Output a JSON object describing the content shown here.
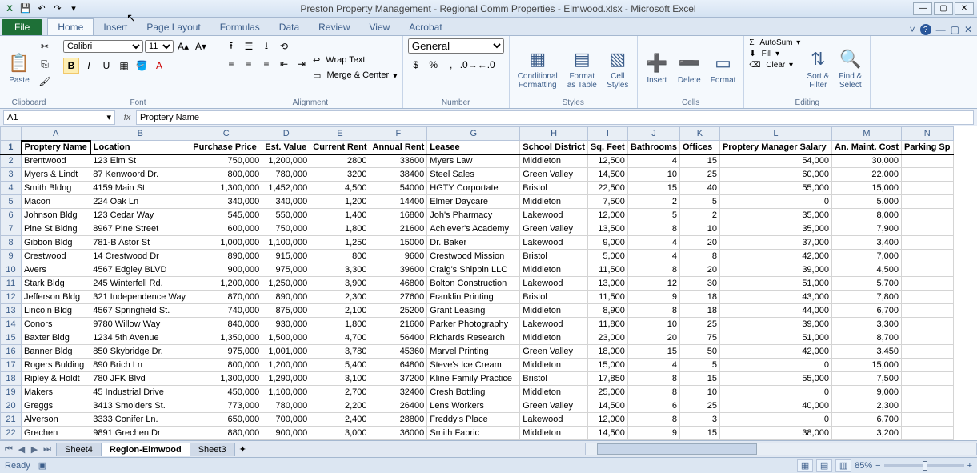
{
  "app_title": "Preston Property Management - Regional Comm Properties - Elmwood.xlsx  -  Microsoft Excel",
  "tabs": {
    "file": "File",
    "items": [
      "Home",
      "Insert",
      "Page Layout",
      "Formulas",
      "Data",
      "Review",
      "View",
      "Acrobat"
    ],
    "active": "Home"
  },
  "ribbon": {
    "clipboard": {
      "paste": "Paste",
      "label": "Clipboard"
    },
    "font": {
      "name": "Calibri",
      "size": "11",
      "label": "Font"
    },
    "alignment": {
      "wrap": "Wrap Text",
      "merge": "Merge & Center",
      "label": "Alignment"
    },
    "number": {
      "format": "General",
      "label": "Number"
    },
    "styles": {
      "cond": "Conditional\nFormatting",
      "fmt": "Format\nas Table",
      "cell": "Cell\nStyles",
      "label": "Styles"
    },
    "cells": {
      "insert": "Insert",
      "delete": "Delete",
      "format": "Format",
      "label": "Cells"
    },
    "editing": {
      "autosum": "AutoSum",
      "fill": "Fill",
      "clear": "Clear",
      "sort": "Sort &\nFilter",
      "find": "Find &\nSelect",
      "label": "Editing"
    }
  },
  "namebox": "A1",
  "formula": "Proptery Name",
  "columns": [
    {
      "letter": "A",
      "label": "Proptery Name",
      "w": 86,
      "align": "txt"
    },
    {
      "letter": "B",
      "label": "Location",
      "w": 125,
      "align": "txt"
    },
    {
      "letter": "C",
      "label": "Purchase Price",
      "w": 90,
      "align": "num"
    },
    {
      "letter": "D",
      "label": "Est. Value",
      "w": 60,
      "align": "num"
    },
    {
      "letter": "E",
      "label": "Current Rent",
      "w": 70,
      "align": "num"
    },
    {
      "letter": "F",
      "label": "Annual Rent",
      "w": 66,
      "align": "num"
    },
    {
      "letter": "G",
      "label": "Leasee",
      "w": 116,
      "align": "txt"
    },
    {
      "letter": "H",
      "label": "School District",
      "w": 80,
      "align": "txt"
    },
    {
      "letter": "I",
      "label": "Sq. Feet",
      "w": 50,
      "align": "num"
    },
    {
      "letter": "J",
      "label": "Bathrooms",
      "w": 60,
      "align": "num"
    },
    {
      "letter": "K",
      "label": "Offices",
      "w": 50,
      "align": "num"
    },
    {
      "letter": "L",
      "label": "Proptery Manager Salary",
      "w": 140,
      "align": "num"
    },
    {
      "letter": "M",
      "label": "An. Maint. Cost",
      "w": 82,
      "align": "num"
    },
    {
      "letter": "N",
      "label": "Parking Sp",
      "w": 55,
      "align": "num"
    }
  ],
  "rows": [
    [
      "Brentwood",
      "123 Elm St",
      "750,000",
      "1,200,000",
      "2800",
      "33600",
      "Myers Law",
      "Middleton",
      "12,500",
      "4",
      "15",
      "54,000",
      "30,000",
      ""
    ],
    [
      "Myers & Lindt",
      "87 Kenwoord Dr.",
      "800,000",
      "780,000",
      "3200",
      "38400",
      "Steel Sales",
      "Green Valley",
      "14,500",
      "10",
      "25",
      "60,000",
      "22,000",
      ""
    ],
    [
      "Smith Bldng",
      "4159 Main St",
      "1,300,000",
      "1,452,000",
      "4,500",
      "54000",
      "HGTY Corportate",
      "Bristol",
      "22,500",
      "15",
      "40",
      "55,000",
      "15,000",
      ""
    ],
    [
      "Macon",
      "224 Oak Ln",
      "340,000",
      "340,000",
      "1,200",
      "14400",
      "Elmer Daycare",
      "Middleton",
      "7,500",
      "2",
      "5",
      "0",
      "5,000",
      ""
    ],
    [
      "Johnson Bldg",
      "123 Cedar Way",
      "545,000",
      "550,000",
      "1,400",
      "16800",
      "Joh's Pharmacy",
      "Lakewood",
      "12,000",
      "5",
      "2",
      "35,000",
      "8,000",
      ""
    ],
    [
      "Pine St Bldng",
      "8967 Pine Street",
      "600,000",
      "750,000",
      "1,800",
      "21600",
      "Achiever's Academy",
      "Green Valley",
      "13,500",
      "8",
      "10",
      "35,000",
      "7,900",
      ""
    ],
    [
      "Gibbon Bldg",
      "781-B Astor St",
      "1,000,000",
      "1,100,000",
      "1,250",
      "15000",
      "Dr. Baker",
      "Lakewood",
      "9,000",
      "4",
      "20",
      "37,000",
      "3,400",
      ""
    ],
    [
      "Crestwood",
      "14 Crestwood Dr",
      "890,000",
      "915,000",
      "800",
      "9600",
      "Crestwood Mission",
      "Bristol",
      "5,000",
      "4",
      "8",
      "42,000",
      "7,000",
      ""
    ],
    [
      "Avers",
      "4567 Edgley BLVD",
      "900,000",
      "975,000",
      "3,300",
      "39600",
      "Craig's Shippin LLC",
      "Middleton",
      "11,500",
      "8",
      "20",
      "39,000",
      "4,500",
      ""
    ],
    [
      "Stark Bldg",
      "245 Winterfell Rd.",
      "1,200,000",
      "1,250,000",
      "3,900",
      "46800",
      "Bolton Construction",
      "Lakewood",
      "13,000",
      "12",
      "30",
      "51,000",
      "5,700",
      ""
    ],
    [
      "Jefferson Bldg",
      "321 Independence Way",
      "870,000",
      "890,000",
      "2,300",
      "27600",
      "Franklin Printing",
      "Bristol",
      "11,500",
      "9",
      "18",
      "43,000",
      "7,800",
      ""
    ],
    [
      "Lincoln Bldg",
      "4567 Springfield St.",
      "740,000",
      "875,000",
      "2,100",
      "25200",
      "Grant Leasing",
      "Middleton",
      "8,900",
      "8",
      "18",
      "44,000",
      "6,700",
      ""
    ],
    [
      "Conors",
      "9780 Willow Way",
      "840,000",
      "930,000",
      "1,800",
      "21600",
      "Parker Photography",
      "Lakewood",
      "11,800",
      "10",
      "25",
      "39,000",
      "3,300",
      ""
    ],
    [
      "Baxter Bldg",
      "1234 5th Avenue",
      "1,350,000",
      "1,500,000",
      "4,700",
      "56400",
      "Richards Research",
      "Middleton",
      "23,000",
      "20",
      "75",
      "51,000",
      "8,700",
      ""
    ],
    [
      "Banner Bldg",
      "850 Skybridge Dr.",
      "975,000",
      "1,001,000",
      "3,780",
      "45360",
      "Marvel Printing",
      "Green Valley",
      "18,000",
      "15",
      "50",
      "42,000",
      "3,450",
      ""
    ],
    [
      "Rogers Bulding",
      "890 Brich Ln",
      "800,000",
      "1,200,000",
      "5,400",
      "64800",
      "Steve's Ice Cream",
      "Middleton",
      "15,000",
      "4",
      "5",
      "0",
      "15,000",
      ""
    ],
    [
      "Ripley & Holdt",
      "780 JFK Blvd",
      "1,300,000",
      "1,290,000",
      "3,100",
      "37200",
      "Kline Family Practice",
      "Bristol",
      "17,850",
      "8",
      "15",
      "55,000",
      "7,500",
      ""
    ],
    [
      "Makers",
      "45 Industrial Drive",
      "450,000",
      "1,100,000",
      "2,700",
      "32400",
      "Cresh Bottling",
      "Middleton",
      "25,000",
      "8",
      "10",
      "0",
      "9,000",
      ""
    ],
    [
      "Greggs",
      "3413 Smolders St.",
      "773,000",
      "780,000",
      "2,200",
      "26400",
      "Lens Workers",
      "Green Valley",
      "14,500",
      "6",
      "25",
      "40,000",
      "2,300",
      ""
    ],
    [
      "Alverson",
      "3333 Conifer Ln.",
      "650,000",
      "700,000",
      "2,400",
      "28800",
      "Freddy's Place",
      "Lakewood",
      "12,000",
      "8",
      "3",
      "0",
      "6,700",
      ""
    ],
    [
      "Grechen",
      "9891 Grechen Dr",
      "880,000",
      "900,000",
      "3,000",
      "36000",
      "Smith Fabric",
      "Middleton",
      "14,500",
      "9",
      "15",
      "38,000",
      "3,200",
      ""
    ]
  ],
  "sheets": {
    "tabs": [
      "Sheet4",
      "Region-Elmwood",
      "Sheet3"
    ],
    "active": "Region-Elmwood"
  },
  "status": {
    "ready": "Ready",
    "zoom": "85%"
  }
}
